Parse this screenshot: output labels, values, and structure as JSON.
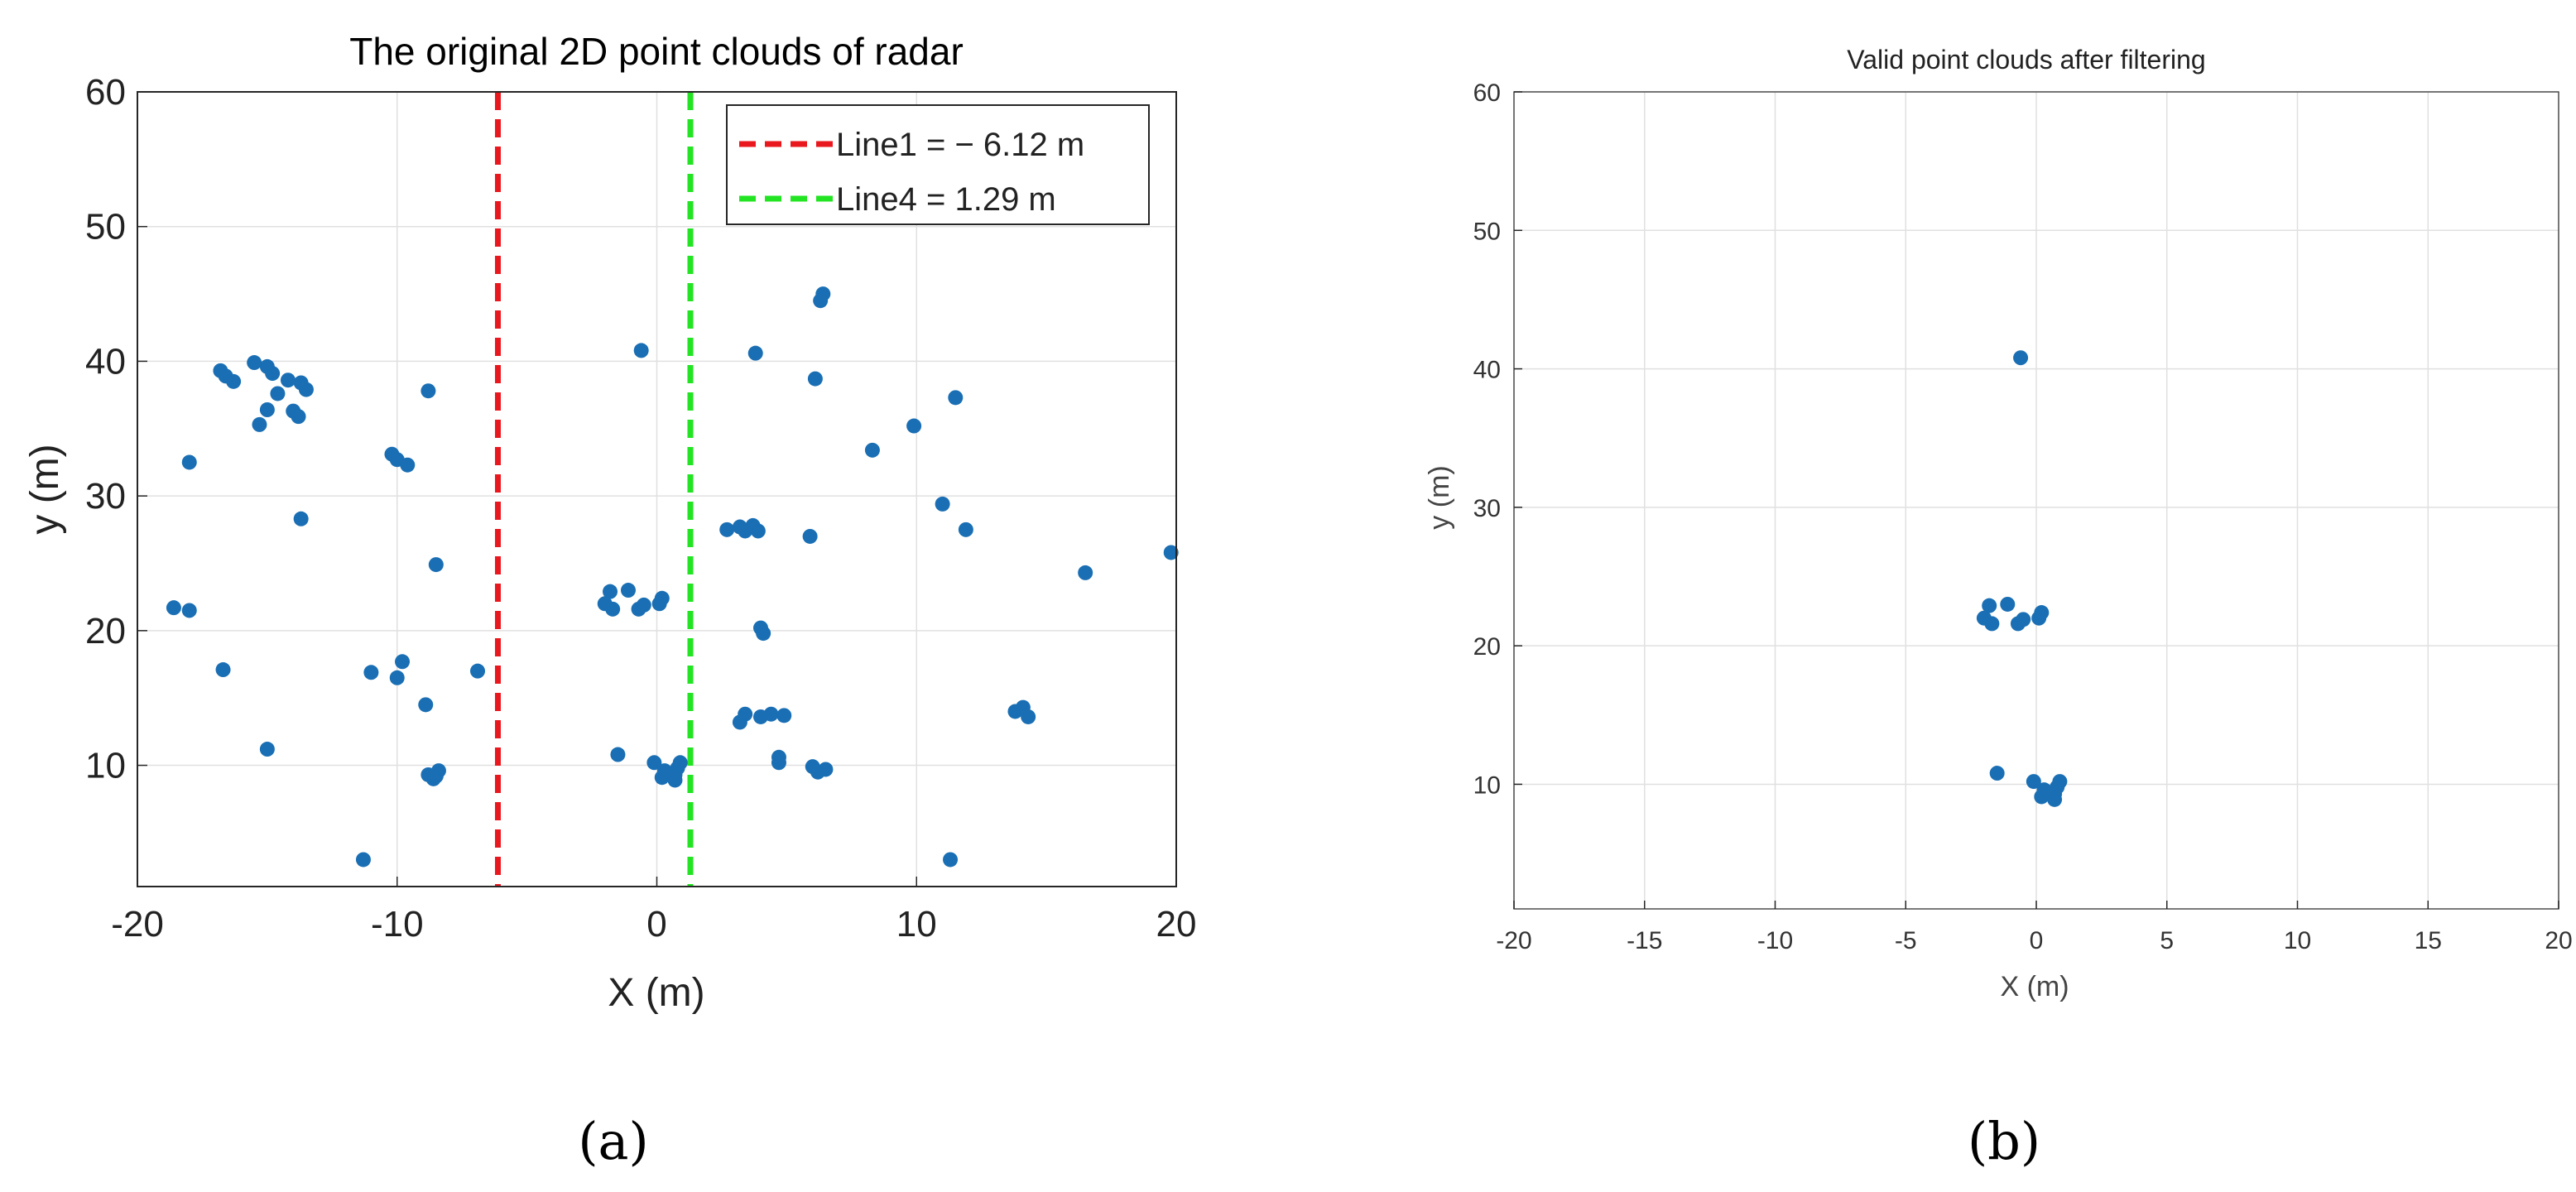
{
  "colors": {
    "points": "#1a6fb4",
    "line1": "#e8181e",
    "line4": "#22e422",
    "grid": "#e0e0e0"
  },
  "chart_data": [
    {
      "type": "scatter",
      "title": "The original 2D point clouds of radar",
      "xlabel": "X (m)",
      "ylabel": "y (m)",
      "xlim": [
        -20,
        20
      ],
      "ylim": [
        1,
        60
      ],
      "xticks": [
        -20,
        -10,
        0,
        10,
        20
      ],
      "yticks": [
        10,
        20,
        30,
        40,
        50,
        60
      ],
      "grid": true,
      "legend_position": "top-right",
      "panel_label": "(a)",
      "series": [
        {
          "type": "scatter",
          "points": [
            [
              -16.8,
              39.3
            ],
            [
              -16.6,
              38.9
            ],
            [
              -16.3,
              38.5
            ],
            [
              -15.5,
              39.9
            ],
            [
              -15.0,
              39.6
            ],
            [
              -14.8,
              39.1
            ],
            [
              -14.2,
              38.6
            ],
            [
              -13.7,
              38.4
            ],
            [
              -13.5,
              37.9
            ],
            [
              -14.6,
              37.6
            ],
            [
              -15.0,
              36.4
            ],
            [
              -14.0,
              36.3
            ],
            [
              -13.8,
              35.9
            ],
            [
              -15.3,
              35.3
            ],
            [
              -18.0,
              32.5
            ],
            [
              -13.7,
              28.3
            ],
            [
              -10.2,
              33.1
            ],
            [
              -10.0,
              32.7
            ],
            [
              -9.6,
              32.3
            ],
            [
              -8.8,
              37.8
            ],
            [
              -8.5,
              24.9
            ],
            [
              -18.6,
              21.7
            ],
            [
              -18.0,
              21.5
            ],
            [
              -16.7,
              17.1
            ],
            [
              -15.0,
              11.2
            ],
            [
              -11.0,
              16.9
            ],
            [
              -9.8,
              17.7
            ],
            [
              -10.0,
              16.5
            ],
            [
              -8.9,
              14.5
            ],
            [
              -8.8,
              9.3
            ],
            [
              -8.6,
              9.0
            ],
            [
              -8.4,
              9.6
            ],
            [
              -8.5,
              9.2
            ],
            [
              -11.3,
              3.0
            ],
            [
              -6.9,
              17.0
            ],
            [
              -0.6,
              40.8
            ],
            [
              -2.0,
              22.0
            ],
            [
              -1.8,
              22.9
            ],
            [
              -1.7,
              21.6
            ],
            [
              -1.1,
              23.0
            ],
            [
              -0.7,
              21.6
            ],
            [
              -0.5,
              21.9
            ],
            [
              0.1,
              22.0
            ],
            [
              0.2,
              22.4
            ],
            [
              -1.5,
              10.8
            ],
            [
              -0.1,
              10.2
            ],
            [
              0.2,
              9.1
            ],
            [
              0.3,
              9.6
            ],
            [
              0.7,
              9.3
            ],
            [
              0.8,
              9.8
            ],
            [
              0.9,
              10.2
            ],
            [
              0.7,
              8.9
            ],
            [
              3.8,
              40.6
            ],
            [
              2.7,
              27.5
            ],
            [
              3.2,
              27.7
            ],
            [
              3.4,
              27.4
            ],
            [
              3.7,
              27.8
            ],
            [
              3.9,
              27.4
            ],
            [
              4.0,
              20.2
            ],
            [
              4.1,
              19.8
            ],
            [
              3.2,
              13.2
            ],
            [
              3.4,
              13.8
            ],
            [
              4.0,
              13.6
            ],
            [
              4.4,
              13.8
            ],
            [
              4.9,
              13.7
            ],
            [
              4.7,
              10.6
            ],
            [
              4.7,
              10.2
            ],
            [
              5.9,
              27.0
            ],
            [
              6.3,
              44.5
            ],
            [
              6.4,
              45.0
            ],
            [
              6.1,
              38.7
            ],
            [
              6.0,
              9.9
            ],
            [
              6.2,
              9.5
            ],
            [
              6.5,
              9.7
            ],
            [
              8.3,
              33.4
            ],
            [
              9.9,
              35.2
            ],
            [
              11.0,
              29.4
            ],
            [
              11.5,
              37.3
            ],
            [
              11.9,
              27.5
            ],
            [
              11.3,
              3.0
            ],
            [
              13.8,
              14.0
            ],
            [
              14.1,
              14.3
            ],
            [
              14.3,
              13.6
            ],
            [
              16.5,
              24.3
            ],
            [
              19.8,
              25.8
            ]
          ]
        }
      ],
      "vertical_lines": [
        {
          "name": "Line1 = − 6.12 m",
          "x": -6.12,
          "style": "dashed"
        },
        {
          "name": "Line4 = 1.29 m",
          "x": 1.29,
          "style": "dashed"
        }
      ]
    },
    {
      "type": "scatter",
      "title": "Valid point clouds after filtering",
      "xlabel": "X (m)",
      "ylabel": "y (m)",
      "xlim": [
        -20,
        20
      ],
      "ylim": [
        1,
        60
      ],
      "xticks": [
        -20,
        -15,
        -10,
        -5,
        0,
        5,
        10,
        15,
        20
      ],
      "yticks": [
        10,
        20,
        30,
        40,
        50,
        60
      ],
      "grid": true,
      "panel_label": "(b)",
      "series": [
        {
          "type": "scatter",
          "points": [
            [
              -0.6,
              40.8
            ],
            [
              -2.0,
              22.0
            ],
            [
              -1.8,
              22.9
            ],
            [
              -1.7,
              21.6
            ],
            [
              -1.1,
              23.0
            ],
            [
              -0.7,
              21.6
            ],
            [
              -0.5,
              21.9
            ],
            [
              0.1,
              22.0
            ],
            [
              0.2,
              22.4
            ],
            [
              -1.5,
              10.8
            ],
            [
              -0.1,
              10.2
            ],
            [
              0.2,
              9.1
            ],
            [
              0.3,
              9.6
            ],
            [
              0.7,
              9.3
            ],
            [
              0.8,
              9.8
            ],
            [
              0.9,
              10.2
            ],
            [
              0.7,
              8.9
            ]
          ]
        }
      ]
    }
  ]
}
